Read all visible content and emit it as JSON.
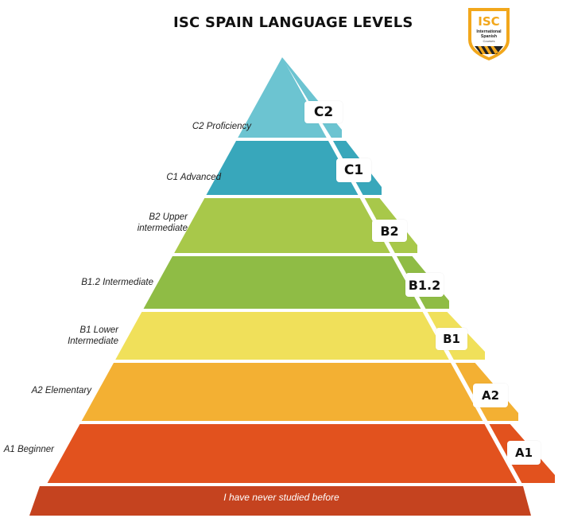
{
  "title": "ISC SPAIN LANGUAGE LEVELS",
  "logo": {
    "top": "ISC",
    "line1": "International",
    "line2": "Spanish",
    "line3": "Courses"
  },
  "levels": [
    {
      "code": "C2",
      "name": "C2 Proficiency",
      "color": "#6cc4d1"
    },
    {
      "code": "C1",
      "name": "C1 Advanced",
      "color": "#38a7bb"
    },
    {
      "code": "B2",
      "name": "B2 Upper intermediate",
      "name_lines": [
        "B2 Upper",
        "intermediate"
      ],
      "color": "#a8c84a"
    },
    {
      "code": "B1.2",
      "name": "B1.2 Intermediate",
      "color": "#8fbc45"
    },
    {
      "code": "B1",
      "name": "B1 Lower Intermediate",
      "name_lines": [
        "B1 Lower",
        "Intermediate"
      ],
      "color": "#f0e05a"
    },
    {
      "code": "A2",
      "name": "A2 Elementary",
      "color": "#f3b033"
    },
    {
      "code": "A1",
      "name": "A1 Beginner",
      "color": "#e2521e"
    }
  ],
  "base": {
    "text": "I have never studied before",
    "color": "#c5431f"
  }
}
